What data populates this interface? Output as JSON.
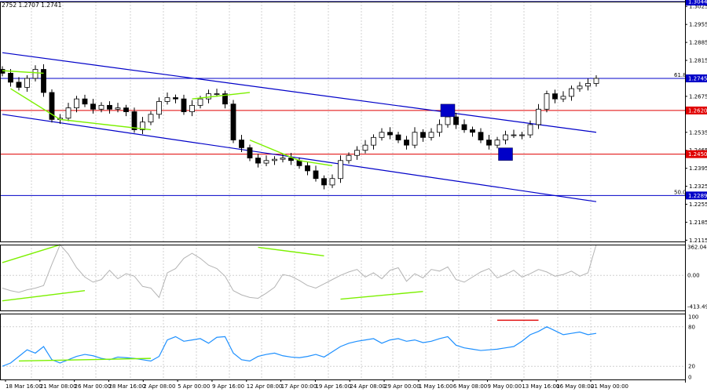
{
  "header": {
    "ohlc_text": "2752 1.2707 1.2741"
  },
  "colors": {
    "channel": "#0000c8",
    "level_blue": "#0000c8",
    "level_red": "#e00000",
    "divergence": "#7cf000",
    "cci": "#b4b4b4",
    "rsi": "#1e90ff",
    "grid": "#d0d0d0",
    "candle": "#000000",
    "signal_box": "#0000c8"
  },
  "chart_data": [
    {
      "type": "candlestick",
      "title": "",
      "x_labels": [
        "18 Mar 16:00",
        "21 Mar 08:00",
        "26 Mar 00:00",
        "28 Mar 16:00",
        "2 Apr 08:00",
        "5 Apr 00:00",
        "9 Apr 16:00",
        "12 Apr 08:00",
        "17 Apr 00:00",
        "19 Apr 16:00",
        "24 Apr 08:00",
        "29 Apr 00:00",
        "1 May 16:00",
        "6 May 08:00",
        "9 May 00:00",
        "13 May 16:00",
        "16 May 08:00",
        "21 May 00:00"
      ],
      "y_ticks": [
        "1.3025",
        "1.2955",
        "1.2885",
        "1.2815",
        "1.2675",
        "1.2535",
        "1.2465",
        "1.2395",
        "1.2325",
        "1.2255",
        "1.2185",
        "1.2115"
      ],
      "ylim": [
        1.211,
        1.3044
      ],
      "horizontal_levels": [
        {
          "value": "1.3044",
          "color": "blue"
        },
        {
          "value": "1.2745",
          "color": "blue",
          "fib_label": "61.8"
        },
        {
          "value": "1.2620",
          "color": "red"
        },
        {
          "value": "1.2450",
          "color": "red"
        },
        {
          "value": "1.2289",
          "color": "blue",
          "fib_label": "50.0"
        }
      ],
      "descending_channel": {
        "upper": [
          [
            0,
            1.2845
          ],
          [
            72,
            1.2535
          ]
        ],
        "lower": [
          [
            0,
            1.2605
          ],
          [
            72,
            1.2265
          ]
        ]
      },
      "close_series": [
        1.2765,
        1.273,
        1.271,
        1.2745,
        1.278,
        1.269,
        1.2585,
        1.259,
        1.263,
        1.2665,
        1.2645,
        1.2625,
        1.264,
        1.2625,
        1.263,
        1.2615,
        1.2545,
        1.2575,
        1.2605,
        1.2655,
        1.267,
        1.2665,
        1.2615,
        1.264,
        1.2665,
        1.2685,
        1.2685,
        1.2645,
        1.2505,
        1.2475,
        1.2435,
        1.2415,
        1.2425,
        1.243,
        1.2435,
        1.2425,
        1.2405,
        1.2385,
        1.2355,
        1.233,
        1.2355,
        1.2425,
        1.2445,
        1.2465,
        1.2485,
        1.2515,
        1.2535,
        1.2525,
        1.2505,
        1.2485,
        1.2535,
        1.2515,
        1.2535,
        1.2565,
        1.2595,
        1.2565,
        1.2545,
        1.2535,
        1.2505,
        1.2485,
        1.2505,
        1.2525,
        1.2525,
        1.2525,
        1.2565,
        1.2625,
        1.2685,
        1.2665,
        1.2675,
        1.2705,
        1.2715,
        1.2725,
        1.2745
      ],
      "signal_boxes": [
        {
          "index": 54,
          "value": 1.262
        },
        {
          "index": 61,
          "value": 1.245
        }
      ],
      "divergence_lines": [
        [
          [
            0,
            1.2775
          ],
          [
            5,
            1.2765
          ]
        ],
        [
          [
            1,
            1.2705
          ],
          [
            7,
            1.2585
          ]
        ],
        [
          [
            7,
            1.2585
          ],
          [
            18,
            1.2545
          ]
        ],
        [
          [
            23,
            1.2665
          ],
          [
            30,
            1.269
          ]
        ],
        [
          [
            30,
            1.2505
          ],
          [
            36,
            1.2425
          ]
        ],
        [
          [
            36,
            1.2425
          ],
          [
            40,
            1.2405
          ]
        ]
      ]
    },
    {
      "type": "line",
      "title": "",
      "y_ticks": [
        "362.0447",
        "0.00",
        "-413.4931"
      ],
      "ylim": [
        -413.4931,
        362.0447
      ],
      "values": [
        -150,
        -180,
        -200,
        -170,
        -150,
        -120,
        130,
        360,
        250,
        90,
        -20,
        -80,
        -50,
        60,
        -40,
        20,
        -10,
        -130,
        -150,
        -260,
        30,
        80,
        200,
        260,
        200,
        120,
        80,
        -10,
        -180,
        -230,
        -260,
        -270,
        -210,
        -140,
        10,
        -10,
        -60,
        -120,
        -150,
        -100,
        -50,
        0,
        40,
        70,
        -20,
        30,
        -40,
        60,
        90,
        -70,
        20,
        -30,
        70,
        50,
        100,
        -50,
        -80,
        -20,
        40,
        80,
        -30,
        10,
        60,
        -20,
        20,
        70,
        40,
        -10,
        10,
        50,
        -10,
        30,
        362
      ],
      "divergence_lines": [
        [
          [
            0,
            150
          ],
          [
            7,
            360
          ]
        ],
        [
          [
            0,
            -300
          ],
          [
            10,
            -180
          ]
        ],
        [
          [
            31,
            330
          ],
          [
            39,
            230
          ]
        ],
        [
          [
            41,
            -280
          ],
          [
            51,
            -190
          ]
        ]
      ]
    },
    {
      "type": "line",
      "title": "",
      "y_ticks": [
        "100",
        "80",
        "20",
        "0"
      ],
      "ylim": [
        0,
        100
      ],
      "values": [
        20,
        25,
        35,
        45,
        40,
        50,
        30,
        25,
        30,
        35,
        38,
        36,
        32,
        30,
        34,
        33,
        32,
        30,
        28,
        35,
        60,
        65,
        58,
        60,
        62,
        55,
        64,
        65,
        40,
        30,
        28,
        35,
        38,
        40,
        36,
        34,
        33,
        35,
        38,
        34,
        42,
        50,
        55,
        58,
        60,
        62,
        55,
        60,
        62,
        58,
        60,
        56,
        58,
        62,
        65,
        52,
        48,
        46,
        44,
        45,
        46,
        48,
        50,
        58,
        68,
        73,
        80,
        74,
        68,
        70,
        72,
        68,
        70
      ],
      "red_marker": {
        "start": 60,
        "end": 65,
        "value": 90
      },
      "divergence_lines": [
        [
          [
            2,
            28
          ],
          [
            18,
            32
          ]
        ]
      ]
    }
  ]
}
